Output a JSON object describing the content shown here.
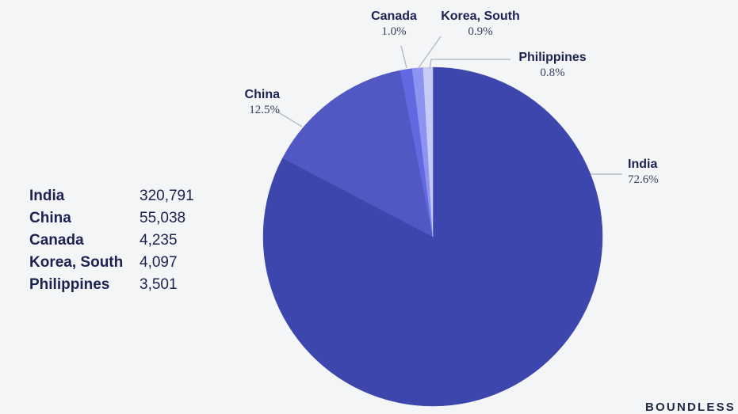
{
  "chart_data": {
    "type": "pie",
    "slices": [
      {
        "label": "India",
        "percent": "72.6%",
        "value": 72.6,
        "color": "#3d46ad"
      },
      {
        "label": "China",
        "percent": "12.5%",
        "value": 12.5,
        "color": "#5158c4"
      },
      {
        "label": "Canada",
        "percent": "1.0%",
        "value": 1.0,
        "color": "#6269e0"
      },
      {
        "label": "Korea, South",
        "percent": "0.9%",
        "value": 0.9,
        "color": "#8d93f0"
      },
      {
        "label": "Philippines",
        "percent": "0.8%",
        "value": 0.8,
        "color": "#c8cbf3"
      }
    ]
  },
  "table": {
    "rows": [
      {
        "country": "India",
        "value": "320,791"
      },
      {
        "country": "China",
        "value": "55,038"
      },
      {
        "country": "Canada",
        "value": "4,235"
      },
      {
        "country": "Korea, South",
        "value": "4,097"
      },
      {
        "country": "Philippines",
        "value": "3,501"
      }
    ]
  },
  "brand": "BOUNDLESS"
}
